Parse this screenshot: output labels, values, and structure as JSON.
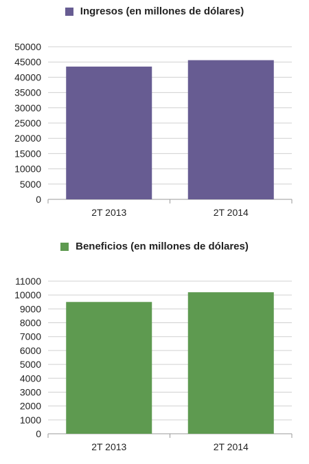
{
  "chart_data": [
    {
      "type": "bar",
      "categories": [
        "2T 2013",
        "2T 2014"
      ],
      "series": [
        {
          "name": "Ingresos (en millones de dólares)",
          "values": [
            43500,
            45600
          ]
        }
      ],
      "color": "#675c92",
      "yticks": [
        "0",
        "5000",
        "10000",
        "15000",
        "20000",
        "25000",
        "30000",
        "35000",
        "40000",
        "45000",
        "50000"
      ],
      "ylim": [
        0,
        50000
      ],
      "grid": true,
      "legend": "top-center"
    },
    {
      "type": "bar",
      "categories": [
        "2T 2013",
        "2T 2014"
      ],
      "series": [
        {
          "name": "Beneficios (en millones de dólares)",
          "values": [
            9500,
            10200
          ]
        }
      ],
      "color": "#5e9a50",
      "yticks": [
        "0",
        "1000",
        "2000",
        "3000",
        "4000",
        "5000",
        "6000",
        "7000",
        "8000",
        "9000",
        "10000",
        "11000"
      ],
      "ylim": [
        0,
        11000
      ],
      "grid": true,
      "legend": "top-center"
    }
  ]
}
